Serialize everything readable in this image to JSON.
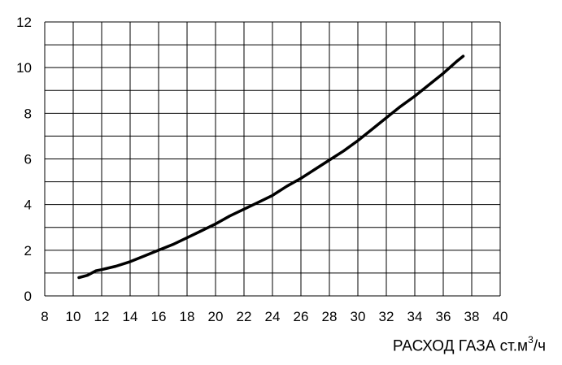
{
  "chart_data": {
    "type": "line",
    "title": "",
    "xlabel_main": "РАСХОД ГАЗА ст.м",
    "xlabel_sup": "3",
    "xlabel_tail": "/ч",
    "ylabel": "",
    "xlim": [
      8,
      40
    ],
    "ylim": [
      0,
      12
    ],
    "x_ticks": [
      8,
      10,
      12,
      14,
      16,
      18,
      20,
      22,
      24,
      26,
      28,
      30,
      32,
      34,
      36,
      38,
      40
    ],
    "y_ticks": [
      0,
      2,
      4,
      6,
      8,
      10,
      12
    ],
    "grid_x_step": 2,
    "grid_y_step": 1,
    "grid": true,
    "line_color": "#000000",
    "series": [
      {
        "x": [
          10.4,
          11.0,
          11.6,
          12.0,
          13.0,
          14.0,
          15.0,
          16.0,
          17.0,
          18.0,
          19.0,
          20.0,
          21.0,
          22.0,
          23.0,
          24.0,
          25.0,
          26.0,
          27.0,
          28.0,
          29.0,
          30.0,
          31.0,
          32.0,
          33.0,
          34.0,
          35.0,
          36.0,
          37.0,
          37.4
        ],
        "y": [
          0.8,
          0.9,
          1.1,
          1.15,
          1.3,
          1.5,
          1.75,
          2.0,
          2.25,
          2.55,
          2.85,
          3.15,
          3.5,
          3.8,
          4.1,
          4.4,
          4.8,
          5.15,
          5.55,
          5.95,
          6.35,
          6.8,
          7.3,
          7.8,
          8.3,
          8.75,
          9.25,
          9.75,
          10.3,
          10.5
        ]
      }
    ]
  }
}
